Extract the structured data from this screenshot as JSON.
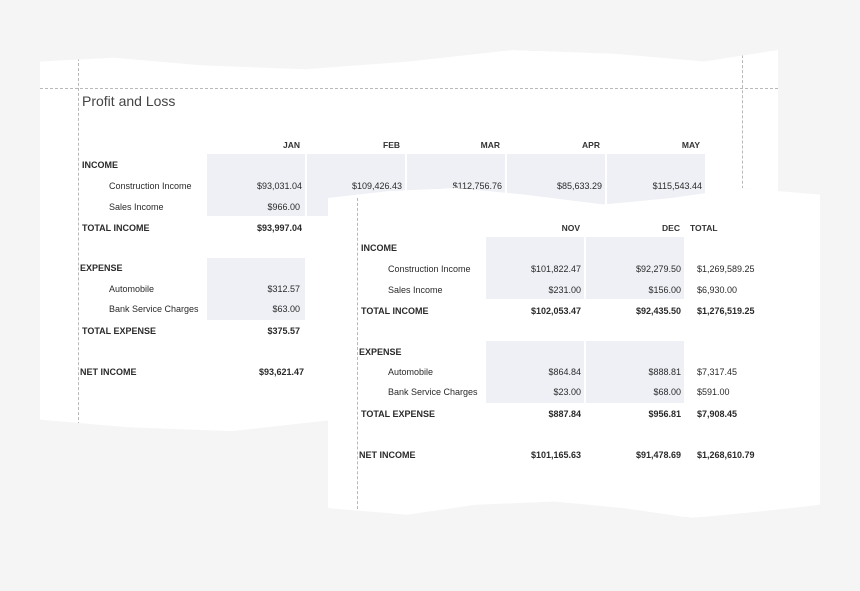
{
  "report_title": "Profit and Loss",
  "labels": {
    "income": "INCOME",
    "construction_income": "Construction Income",
    "sales_income": "Sales Income",
    "total_income": "TOTAL INCOME",
    "expense": "EXPENSE",
    "automobile": "Automobile",
    "bank_service_charges": "Bank Service Charges",
    "total_expense": "TOTAL EXPENSE",
    "net_income": "NET INCOME"
  },
  "back_sheet": {
    "months": [
      "JAN",
      "FEB",
      "MAR",
      "APR",
      "MAY"
    ],
    "construction_income": [
      "$93,031.04",
      "$109,426.43",
      "$112,756.76",
      "$85,633.29",
      "$115,543.44"
    ],
    "sales_income": [
      "$966.00"
    ],
    "total_income": [
      "$93,997.04"
    ],
    "automobile": [
      "$312.57"
    ],
    "bank_service_charges": [
      "$63.00"
    ],
    "total_expense": [
      "$375.57"
    ],
    "net_income": [
      "$93,621.47"
    ]
  },
  "front_sheet": {
    "months": [
      "NOV",
      "DEC"
    ],
    "total_header": "TOTAL",
    "construction_income": [
      "$101,822.47",
      "$92,279.50",
      "$1,269,589.25"
    ],
    "sales_income": [
      "$231.00",
      "$156.00",
      "$6,930.00"
    ],
    "total_income": [
      "$102,053.47",
      "$92,435.50",
      "$1,276,519.25"
    ],
    "automobile": [
      "$864.84",
      "$888.81",
      "$7,317.45"
    ],
    "bank_service_charges": [
      "$23.00",
      "$68.00",
      "$591.00"
    ],
    "total_expense": [
      "$887.84",
      "$956.81",
      "$7,908.45"
    ],
    "net_income": [
      "$101,165.63",
      "$91,478.69",
      "$1,268,610.79"
    ]
  }
}
